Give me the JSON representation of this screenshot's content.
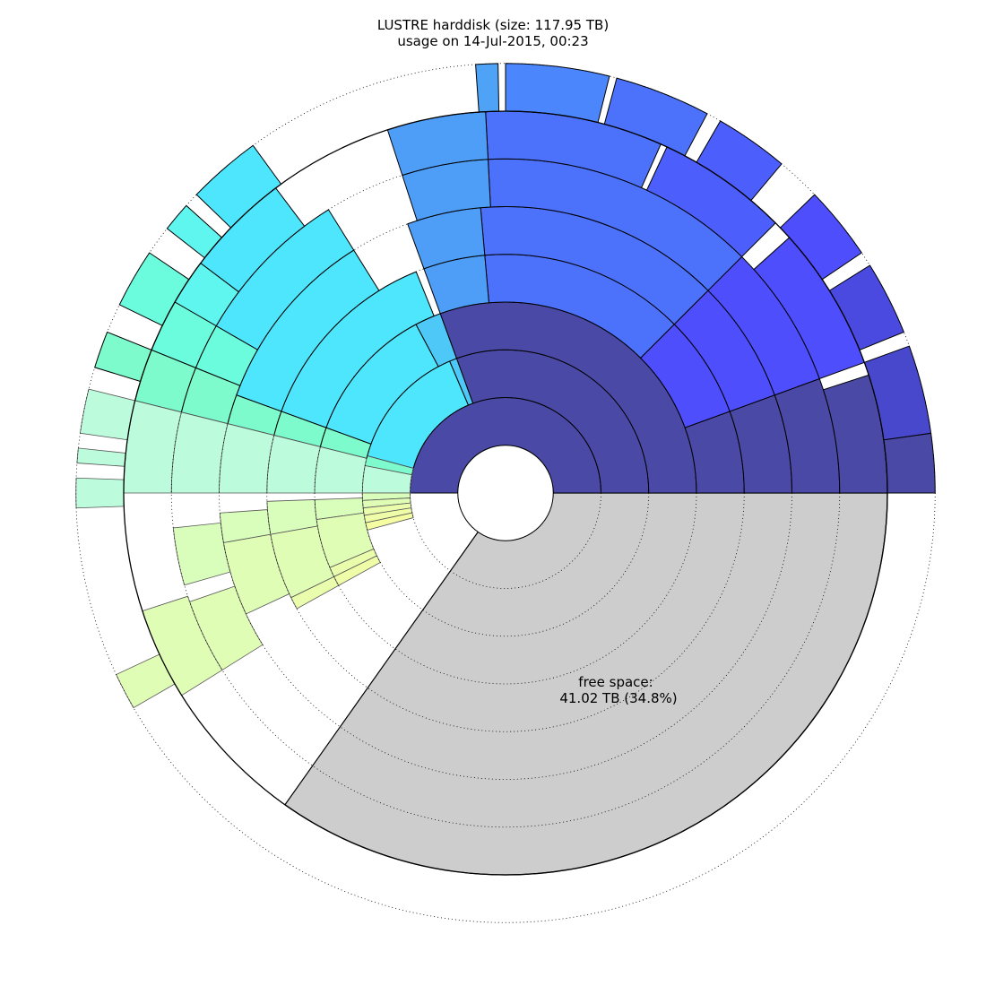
{
  "chart_data": {
    "type": "sunburst",
    "title": "LUSTRE harddisk (size: 117.95 TB)",
    "subtitle": "usage on 14-Jul-2015, 00:23",
    "total_tb": 117.95,
    "free": {
      "label": "free space:",
      "value_text": "41.02 TB (34.8%)",
      "value_tb": 41.02,
      "percent": 34.8,
      "color": "#cdcdcd"
    },
    "rings": 8,
    "grid": "dotted",
    "colors": {
      "used_root": "#4a4aa6",
      "outline": "#000000"
    },
    "segments": [
      {
        "ring": 1,
        "start_deg": 0,
        "end_deg": 180,
        "color": "#4a4aa6"
      },
      {
        "ring": 2,
        "start_deg": 0,
        "end_deg": 110,
        "color": "#4a4aa6"
      },
      {
        "ring": 2,
        "start_deg": 110,
        "end_deg": 113,
        "color": "#4ec9f7"
      },
      {
        "ring": 2,
        "start_deg": 113,
        "end_deg": 165,
        "color": "#4de6fd"
      },
      {
        "ring": 2,
        "start_deg": 165,
        "end_deg": 169,
        "color": "#7dfbcc"
      },
      {
        "ring": 2,
        "start_deg": 169,
        "end_deg": 180,
        "color": "#bcfbdb"
      },
      {
        "ring": 2,
        "start_deg": 180,
        "end_deg": 183,
        "color": "#d9fdba"
      },
      {
        "ring": 2,
        "start_deg": 183,
        "end_deg": 186,
        "color": "#e0fdb6"
      },
      {
        "ring": 2,
        "start_deg": 186,
        "end_deg": 189,
        "color": "#eafdad"
      },
      {
        "ring": 2,
        "start_deg": 189,
        "end_deg": 192,
        "color": "#f0fda8"
      },
      {
        "ring": 2,
        "start_deg": 192,
        "end_deg": 195,
        "color": "#f5fda3"
      },
      {
        "ring": 3,
        "start_deg": 0,
        "end_deg": 110,
        "color": "#4a4aa6"
      },
      {
        "ring": 3,
        "start_deg": 110,
        "end_deg": 118,
        "color": "#4ec9f7"
      },
      {
        "ring": 3,
        "start_deg": 118,
        "end_deg": 160,
        "color": "#4de6fd"
      },
      {
        "ring": 3,
        "start_deg": 160,
        "end_deg": 166,
        "color": "#7dfbcc"
      },
      {
        "ring": 3,
        "start_deg": 166,
        "end_deg": 180,
        "color": "#bcfbdb"
      },
      {
        "ring": 3,
        "start_deg": 182,
        "end_deg": 188,
        "color": "#d9fdba"
      },
      {
        "ring": 3,
        "start_deg": 188,
        "end_deg": 203,
        "color": "#e0fdb6"
      },
      {
        "ring": 3,
        "start_deg": 203,
        "end_deg": 206,
        "color": "#eafdad"
      },
      {
        "ring": 3,
        "start_deg": 206,
        "end_deg": 209,
        "color": "#f0fda8"
      },
      {
        "ring": 4,
        "start_deg": 0,
        "end_deg": 20,
        "color": "#4a4aa6"
      },
      {
        "ring": 4,
        "start_deg": 20,
        "end_deg": 45,
        "color": "#4e4efc"
      },
      {
        "ring": 4,
        "start_deg": 45,
        "end_deg": 95,
        "color": "#4c72fc"
      },
      {
        "ring": 4,
        "start_deg": 95,
        "end_deg": 110,
        "color": "#4e9ef8"
      },
      {
        "ring": 4,
        "start_deg": 112,
        "end_deg": 160,
        "color": "#4de6fd"
      },
      {
        "ring": 4,
        "start_deg": 160,
        "end_deg": 166,
        "color": "#7dfbcc"
      },
      {
        "ring": 4,
        "start_deg": 166,
        "end_deg": 180,
        "color": "#bcfbdb"
      },
      {
        "ring": 4,
        "start_deg": 182,
        "end_deg": 190,
        "color": "#d9fdba"
      },
      {
        "ring": 4,
        "start_deg": 190,
        "end_deg": 206,
        "color": "#e0fdb6"
      },
      {
        "ring": 4,
        "start_deg": 206,
        "end_deg": 209,
        "color": "#eafdad"
      },
      {
        "ring": 5,
        "start_deg": 0,
        "end_deg": 20,
        "color": "#4a4aa6"
      },
      {
        "ring": 5,
        "start_deg": 20,
        "end_deg": 45,
        "color": "#4e4efc"
      },
      {
        "ring": 5,
        "start_deg": 45,
        "end_deg": 95,
        "color": "#4c72fc"
      },
      {
        "ring": 5,
        "start_deg": 95,
        "end_deg": 110,
        "color": "#4e9ef8"
      },
      {
        "ring": 5,
        "start_deg": 122,
        "end_deg": 160,
        "color": "#4de6fd"
      },
      {
        "ring": 5,
        "start_deg": 160,
        "end_deg": 166,
        "color": "#7dfbcc"
      },
      {
        "ring": 5,
        "start_deg": 166,
        "end_deg": 180,
        "color": "#bcfbdb"
      },
      {
        "ring": 5,
        "start_deg": 184,
        "end_deg": 190,
        "color": "#d9fdba"
      },
      {
        "ring": 5,
        "start_deg": 190,
        "end_deg": 205,
        "color": "#e0fdb6"
      },
      {
        "ring": 6,
        "start_deg": 0,
        "end_deg": 20,
        "color": "#4a4aa6"
      },
      {
        "ring": 6,
        "start_deg": 20,
        "end_deg": 45,
        "color": "#4e4efc"
      },
      {
        "ring": 6,
        "start_deg": 45,
        "end_deg": 93,
        "color": "#4c72fc"
      },
      {
        "ring": 6,
        "start_deg": 93,
        "end_deg": 108,
        "color": "#4e9ef8"
      },
      {
        "ring": 6,
        "start_deg": 122,
        "end_deg": 150,
        "color": "#4de6fd"
      },
      {
        "ring": 6,
        "start_deg": 150,
        "end_deg": 158,
        "color": "#6afcdd"
      },
      {
        "ring": 6,
        "start_deg": 158,
        "end_deg": 166,
        "color": "#7dfbcc"
      },
      {
        "ring": 6,
        "start_deg": 166,
        "end_deg": 180,
        "color": "#bcfbdb"
      },
      {
        "ring": 6,
        "start_deg": 186,
        "end_deg": 196,
        "color": "#d9fdba"
      },
      {
        "ring": 6,
        "start_deg": 199,
        "end_deg": 212,
        "color": "#e0fdb6"
      },
      {
        "ring": 7,
        "start_deg": 0,
        "end_deg": 18,
        "color": "#4a4aa6"
      },
      {
        "ring": 7,
        "start_deg": 20,
        "end_deg": 42,
        "color": "#4e4efc"
      },
      {
        "ring": 7,
        "start_deg": 45,
        "end_deg": 65,
        "color": "#4c5ffc"
      },
      {
        "ring": 7,
        "start_deg": 66,
        "end_deg": 93,
        "color": "#4c72fc"
      },
      {
        "ring": 7,
        "start_deg": 93,
        "end_deg": 108,
        "color": "#4e9ef8"
      },
      {
        "ring": 7,
        "start_deg": 127,
        "end_deg": 143,
        "color": "#4de6fd"
      },
      {
        "ring": 7,
        "start_deg": 143,
        "end_deg": 150,
        "color": "#5ff6ef"
      },
      {
        "ring": 7,
        "start_deg": 150,
        "end_deg": 158,
        "color": "#6afcdd"
      },
      {
        "ring": 7,
        "start_deg": 158,
        "end_deg": 166,
        "color": "#7dfbcc"
      },
      {
        "ring": 7,
        "start_deg": 166,
        "end_deg": 180,
        "color": "#bcfbdb"
      },
      {
        "ring": 7,
        "start_deg": 198,
        "end_deg": 212,
        "color": "#e0fdb6"
      },
      {
        "ring": 8,
        "start_deg": 0,
        "end_deg": 8,
        "color": "#4a4aa6"
      },
      {
        "ring": 8,
        "start_deg": 8,
        "end_deg": 20,
        "color": "#4848cc"
      },
      {
        "ring": 8,
        "start_deg": 22,
        "end_deg": 32,
        "color": "#4a4ae0"
      },
      {
        "ring": 8,
        "start_deg": 34,
        "end_deg": 44,
        "color": "#4e4efc"
      },
      {
        "ring": 8,
        "start_deg": 50,
        "end_deg": 60,
        "color": "#4c5ffc"
      },
      {
        "ring": 8,
        "start_deg": 62,
        "end_deg": 75,
        "color": "#4c72fc"
      },
      {
        "ring": 8,
        "start_deg": 76,
        "end_deg": 90,
        "color": "#4c86fc"
      },
      {
        "ring": 8,
        "start_deg": 91,
        "end_deg": 94,
        "color": "#4ea3f6"
      },
      {
        "ring": 8,
        "start_deg": 126,
        "end_deg": 136,
        "color": "#4de6fd"
      },
      {
        "ring": 8,
        "start_deg": 138,
        "end_deg": 142,
        "color": "#5ff6ef"
      },
      {
        "ring": 8,
        "start_deg": 146,
        "end_deg": 154,
        "color": "#6afcdd"
      },
      {
        "ring": 8,
        "start_deg": 158,
        "end_deg": 163,
        "color": "#7dfbcc"
      },
      {
        "ring": 8,
        "start_deg": 166,
        "end_deg": 172,
        "color": "#bcfbdb"
      },
      {
        "ring": 8,
        "start_deg": 174,
        "end_deg": 176,
        "color": "#bcfbdb"
      },
      {
        "ring": 8,
        "start_deg": 178,
        "end_deg": 182,
        "color": "#bcfbdb"
      },
      {
        "ring": 8,
        "start_deg": 205,
        "end_deg": 210,
        "color": "#e0fdb6"
      }
    ]
  }
}
